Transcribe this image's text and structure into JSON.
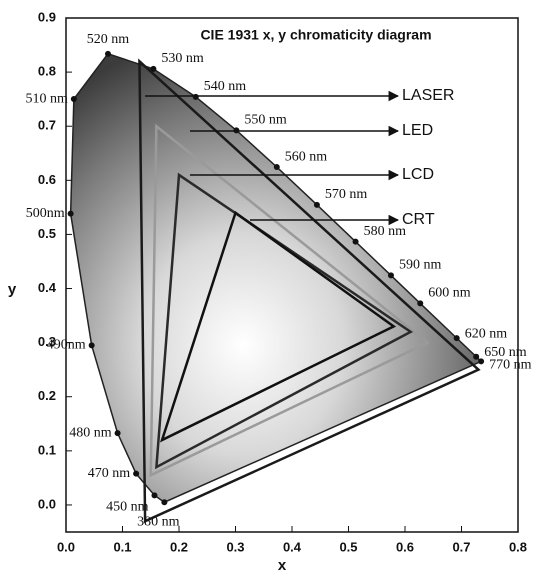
{
  "chart_data": {
    "type": "chromaticity",
    "title": "CIE 1931 x, y chromaticity diagram",
    "x_label": "x",
    "y_label": "y",
    "xlim": [
      0,
      0.8
    ],
    "ylim": [
      -0.05,
      0.9
    ],
    "xticks": [
      {
        "value": 0,
        "label": "0.0"
      },
      0.1,
      0.2,
      0.3,
      0.4,
      0.5,
      0.6,
      0.7,
      0.8
    ],
    "yticks": [
      {
        "value": 0,
        "label": "0.0"
      },
      0.1,
      0.2,
      0.3,
      0.4,
      0.5,
      0.6,
      0.7,
      0.8,
      0.9
    ],
    "grid": false,
    "locus": {
      "labels": [
        "380 nm",
        "450 nm",
        "470 nm",
        "480 nm",
        "490nm",
        "500nm",
        "510 nm",
        "520 nm",
        "530 nm",
        "540 nm",
        "550 nm",
        "560 nm",
        "570 nm",
        "580 nm",
        "590 nm",
        "600 nm",
        "620 nm",
        "650 nm",
        "770 nm"
      ],
      "x": [
        0.1741,
        0.1566,
        0.1241,
        0.0913,
        0.0454,
        0.0082,
        0.0139,
        0.0743,
        0.1547,
        0.2296,
        0.3016,
        0.3731,
        0.4441,
        0.5125,
        0.5752,
        0.627,
        0.6915,
        0.726,
        0.7347
      ],
      "y": [
        0.005,
        0.0177,
        0.0578,
        0.1327,
        0.295,
        0.5384,
        0.7502,
        0.8338,
        0.8059,
        0.7543,
        0.6923,
        0.6245,
        0.5547,
        0.4866,
        0.4242,
        0.3725,
        0.3083,
        0.274,
        0.2653
      ]
    },
    "series": [
      {
        "name": "LASER",
        "color": "#1a1a1a",
        "x": [
          0.13,
          0.73,
          0.14
        ],
        "y": [
          0.82,
          0.25,
          -0.03
        ]
      },
      {
        "name": "LED",
        "color": "#9a9a9a",
        "x": [
          0.16,
          0.64,
          0.15
        ],
        "y": [
          0.7,
          0.3,
          0.055
        ]
      },
      {
        "name": "LCD",
        "color": "#2a2a2a",
        "x": [
          0.2,
          0.61,
          0.16
        ],
        "y": [
          0.61,
          0.32,
          0.07
        ]
      },
      {
        "name": "CRT",
        "color": "#111111",
        "x": [
          0.3,
          0.58,
          0.17
        ],
        "y": [
          0.54,
          0.33,
          0.12
        ]
      }
    ]
  }
}
